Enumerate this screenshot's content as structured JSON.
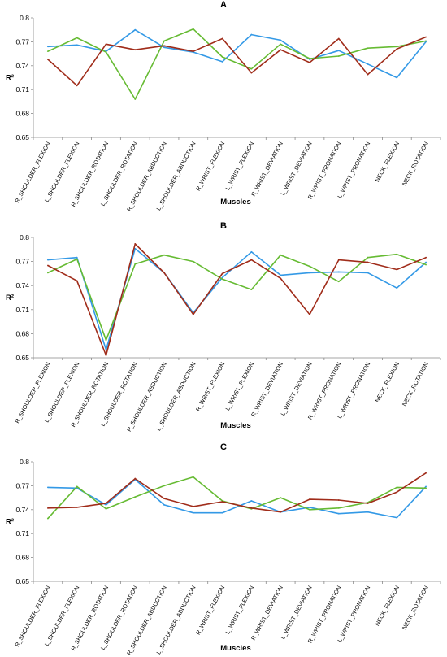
{
  "chart_data": [
    {
      "type": "line",
      "title": "A",
      "xlabel": "Muscles",
      "ylabel": "R²",
      "ylim": [
        0.65,
        0.8
      ],
      "yticks": [
        "0.65",
        "0.68",
        "0.71",
        "0.74",
        "0.77",
        "0.8"
      ],
      "grid": false,
      "legend": "none",
      "categories": [
        "R_SHOULDER_FLEXION",
        "L_SHOULDER_FLEXION",
        "R_SHOULDER_ROTATION",
        "L_SHOULDER_ROTATION",
        "R_SHOULDER_ABDUCTION",
        "L_SHOULDER_ABDUCTION",
        "R_WRIST_FLEXION",
        "L_WRIST_FLEXION",
        "R_WRIST_DEVIATION",
        "L_WRIST_DEVIATION",
        "R_WRIST_PRONATION",
        "L_WRIST_PRONATION",
        "NECK_FLEXION",
        "NECK_ROTATION"
      ],
      "series": [
        {
          "color": "#3399e6",
          "values": [
            0.764,
            0.766,
            0.758,
            0.785,
            0.763,
            0.757,
            0.745,
            0.779,
            0.772,
            0.748,
            0.759,
            0.742,
            0.725,
            0.77
          ]
        },
        {
          "color": "#66bb33",
          "values": [
            0.758,
            0.775,
            0.757,
            0.698,
            0.771,
            0.786,
            0.751,
            0.736,
            0.767,
            0.749,
            0.752,
            0.762,
            0.764,
            0.771
          ]
        },
        {
          "color": "#a02c1a",
          "values": [
            0.748,
            0.715,
            0.767,
            0.76,
            0.765,
            0.758,
            0.774,
            0.731,
            0.76,
            0.744,
            0.774,
            0.729,
            0.761,
            0.776
          ]
        }
      ]
    },
    {
      "type": "line",
      "title": "B",
      "xlabel": "Muscles",
      "ylabel": "R²",
      "ylim": [
        0.65,
        0.8
      ],
      "yticks": [
        "0.65",
        "0.68",
        "0.71",
        "0.74",
        "0.77",
        "0.8"
      ],
      "grid": false,
      "legend": "none",
      "categories": [
        "R_SHOULDER_FLEXION",
        "L_SHOULDER_FLEXION",
        "R_SHOULDER_ROTATION",
        "L_SHOULDER_ROTATION",
        "R_SHOULDER_ABDUCTION",
        "L_SHOULDER_ABDUCTION",
        "R_WRIST_FLEXION",
        "L_WRIST_FLEXION",
        "R_WRIST_DEVIATION",
        "L_WRIST_DEVIATION",
        "R_WRIST_PRONATION",
        "L_WRIST_PRONATION",
        "NECK_FLEXION",
        "NECK_ROTATION"
      ],
      "series": [
        {
          "color": "#3399e6",
          "values": [
            0.772,
            0.775,
            0.66,
            0.786,
            0.756,
            0.706,
            0.75,
            0.782,
            0.753,
            0.756,
            0.757,
            0.756,
            0.737,
            0.769
          ]
        },
        {
          "color": "#66bb33",
          "values": [
            0.756,
            0.773,
            0.672,
            0.767,
            0.778,
            0.77,
            0.748,
            0.735,
            0.778,
            0.764,
            0.745,
            0.775,
            0.779,
            0.766
          ]
        },
        {
          "color": "#a02c1a",
          "values": [
            0.765,
            0.746,
            0.653,
            0.792,
            0.756,
            0.704,
            0.755,
            0.772,
            0.749,
            0.704,
            0.772,
            0.769,
            0.76,
            0.775
          ]
        }
      ]
    },
    {
      "type": "line",
      "title": "C",
      "xlabel": "Muscles",
      "ylabel": "R²",
      "ylim": [
        0.65,
        0.8
      ],
      "yticks": [
        "0.65",
        "0.68",
        "0.71",
        "0.74",
        "0.77",
        "0.8"
      ],
      "grid": false,
      "legend": "none",
      "categories": [
        "R_SHOULDER_FLEXION",
        "L_SHOULDER_FLEXION",
        "R_SHOULDER_ROTATION",
        "L_SHOULDER_ROTATION",
        "R_SHOULDER_ABDUCTION",
        "L_SHOULDER_ABDUCTION",
        "R_WRIST_FLEXION",
        "L_WRIST_FLEXION",
        "R_WRIST_DEVIATION",
        "L_WRIST_DEVIATION",
        "R_WRIST_PRONATION",
        "L_WRIST_PRONATION",
        "NECK_FLEXION",
        "NECK_ROTATION"
      ],
      "series": [
        {
          "color": "#3399e6",
          "values": [
            0.768,
            0.767,
            0.746,
            0.778,
            0.746,
            0.736,
            0.736,
            0.751,
            0.737,
            0.743,
            0.735,
            0.737,
            0.73,
            0.769
          ]
        },
        {
          "color": "#66bb33",
          "values": [
            0.729,
            0.769,
            0.741,
            0.756,
            0.77,
            0.781,
            0.751,
            0.741,
            0.755,
            0.74,
            0.742,
            0.749,
            0.768,
            0.767
          ]
        },
        {
          "color": "#a02c1a",
          "values": [
            0.742,
            0.743,
            0.748,
            0.779,
            0.754,
            0.744,
            0.75,
            0.742,
            0.737,
            0.753,
            0.752,
            0.748,
            0.762,
            0.786
          ]
        }
      ]
    }
  ]
}
